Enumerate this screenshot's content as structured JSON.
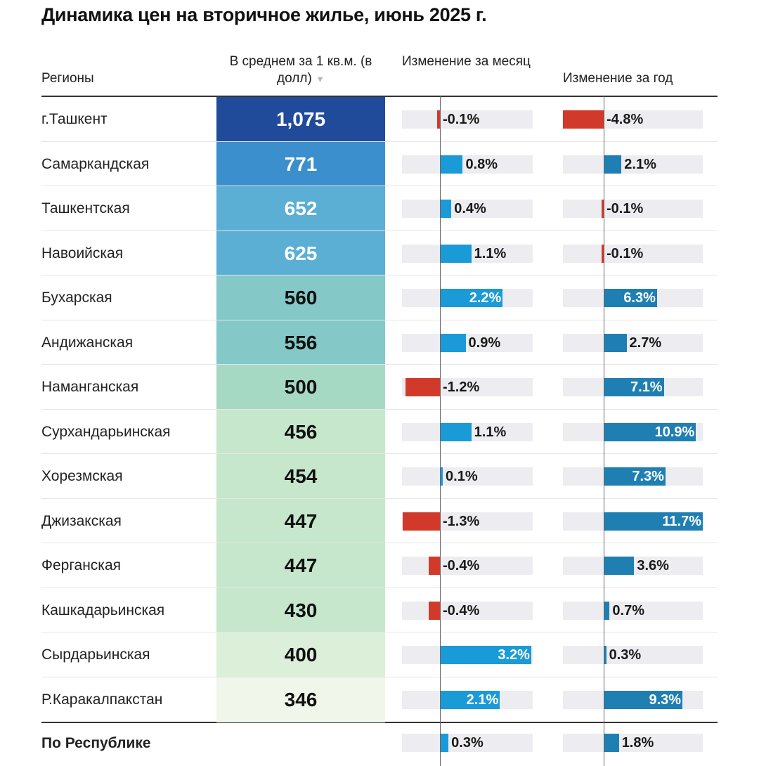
{
  "title": "Динамика цен на вторичное жилье, июнь 2025 г.",
  "headers": {
    "region": "Регионы",
    "price": "В среднем за 1 кв.м. (в долл)",
    "sort_indicator": "▼",
    "month_change": "Изменение за месяц",
    "year_change": "Изменение за год"
  },
  "colors": {
    "negative": "#d13a2a",
    "month_positive": "#1a9bd7",
    "year_positive": "#1f7fb3",
    "track": "#ededf1",
    "price_scale": [
      "#1f4b9a",
      "#3b8fcc",
      "#5baed4",
      "#84c8c8",
      "#a6d9c4",
      "#c6e7cc",
      "#f0f7ea"
    ]
  },
  "chart_data": {
    "type": "table",
    "columns": [
      "Регионы",
      "В среднем за 1 кв.м. (в долл)",
      "Изменение за месяц",
      "Изменение за год"
    ],
    "rows": [
      {
        "region": "г.Ташкент",
        "price": "1,075",
        "price_value": 1075,
        "month": -0.1,
        "month_label": "-0.1%",
        "year": -4.8,
        "year_label": "-4.8%"
      },
      {
        "region": "Самаркандская",
        "price": "771",
        "price_value": 771,
        "month": 0.8,
        "month_label": "0.8%",
        "year": 2.1,
        "year_label": "2.1%"
      },
      {
        "region": "Ташкентская",
        "price": "652",
        "price_value": 652,
        "month": 0.4,
        "month_label": "0.4%",
        "year": -0.1,
        "year_label": "-0.1%"
      },
      {
        "region": "Навоийская",
        "price": "625",
        "price_value": 625,
        "month": 1.1,
        "month_label": "1.1%",
        "year": -0.1,
        "year_label": "-0.1%"
      },
      {
        "region": "Бухарская",
        "price": "560",
        "price_value": 560,
        "month": 2.2,
        "month_label": "2.2%",
        "year": 6.3,
        "year_label": "6.3%"
      },
      {
        "region": "Андижанская",
        "price": "556",
        "price_value": 556,
        "month": 0.9,
        "month_label": "0.9%",
        "year": 2.7,
        "year_label": "2.7%"
      },
      {
        "region": "Наманганская",
        "price": "500",
        "price_value": 500,
        "month": -1.2,
        "month_label": "-1.2%",
        "year": 7.1,
        "year_label": "7.1%"
      },
      {
        "region": "Сурхандарьинская",
        "price": "456",
        "price_value": 456,
        "month": 1.1,
        "month_label": "1.1%",
        "year": 10.9,
        "year_label": "10.9%"
      },
      {
        "region": "Хорезмская",
        "price": "454",
        "price_value": 454,
        "month": 0.1,
        "month_label": "0.1%",
        "year": 7.3,
        "year_label": "7.3%"
      },
      {
        "region": "Джизакская",
        "price": "447",
        "price_value": 447,
        "month": -1.3,
        "month_label": "-1.3%",
        "year": 11.7,
        "year_label": "11.7%"
      },
      {
        "region": "Ферганская",
        "price": "447",
        "price_value": 447,
        "month": -0.4,
        "month_label": "-0.4%",
        "year": 3.6,
        "year_label": "3.6%"
      },
      {
        "region": "Кашкадарьинская",
        "price": "430",
        "price_value": 430,
        "month": -0.4,
        "month_label": "-0.4%",
        "year": 0.7,
        "year_label": "0.7%"
      },
      {
        "region": "Сырдарьинская",
        "price": "400",
        "price_value": 400,
        "month": 3.2,
        "month_label": "3.2%",
        "year": 0.3,
        "year_label": "0.3%"
      },
      {
        "region": "Р.Каракалпакстан",
        "price": "346",
        "price_value": 346,
        "month": 2.1,
        "month_label": "2.1%",
        "year": 9.3,
        "year_label": "9.3%"
      }
    ],
    "total": {
      "region": "По Республике",
      "month": 0.3,
      "month_label": "0.3%",
      "year": 1.8,
      "year_label": "1.8%"
    }
  }
}
